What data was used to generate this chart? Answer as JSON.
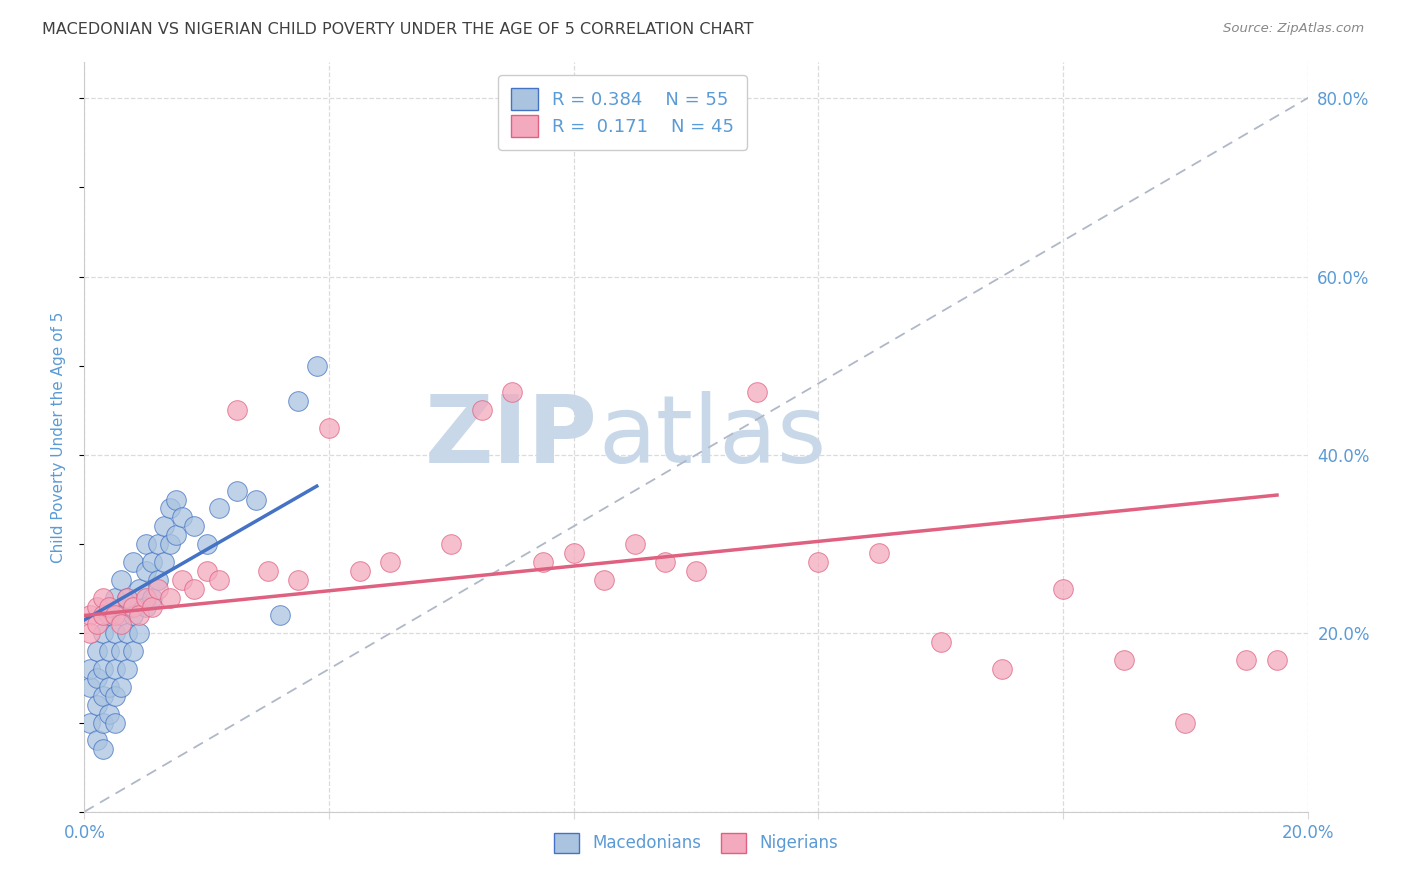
{
  "title": "MACEDONIAN VS NIGERIAN CHILD POVERTY UNDER THE AGE OF 5 CORRELATION CHART",
  "source": "Source: ZipAtlas.com",
  "ylabel": "Child Poverty Under the Age of 5",
  "xlim": [
    0.0,
    0.2
  ],
  "ylim": [
    0.0,
    0.84
  ],
  "macedonian_color": "#aac4e0",
  "nigerian_color": "#f4aabe",
  "macedonian_line_color": "#4472c4",
  "nigerian_line_color": "#e06080",
  "reference_line_color": "#b0b8c8",
  "watermark_color": "#dde5ef",
  "grid_color": "#d8d8d8",
  "title_color": "#404040",
  "axis_label_color": "#5b9bd5",
  "tick_color": "#5b9bd5",
  "macedonians_x": [
    0.001,
    0.001,
    0.001,
    0.002,
    0.002,
    0.002,
    0.002,
    0.003,
    0.003,
    0.003,
    0.003,
    0.003,
    0.004,
    0.004,
    0.004,
    0.004,
    0.005,
    0.005,
    0.005,
    0.005,
    0.005,
    0.006,
    0.006,
    0.006,
    0.006,
    0.007,
    0.007,
    0.007,
    0.008,
    0.008,
    0.008,
    0.009,
    0.009,
    0.01,
    0.01,
    0.01,
    0.011,
    0.011,
    0.012,
    0.012,
    0.013,
    0.013,
    0.014,
    0.014,
    0.015,
    0.015,
    0.016,
    0.018,
    0.02,
    0.022,
    0.025,
    0.028,
    0.032,
    0.035,
    0.038
  ],
  "macedonians_y": [
    0.14,
    0.16,
    0.1,
    0.18,
    0.15,
    0.12,
    0.08,
    0.16,
    0.13,
    0.1,
    0.07,
    0.2,
    0.18,
    0.14,
    0.11,
    0.22,
    0.2,
    0.16,
    0.13,
    0.24,
    0.1,
    0.22,
    0.18,
    0.14,
    0.26,
    0.24,
    0.2,
    0.16,
    0.22,
    0.18,
    0.28,
    0.25,
    0.2,
    0.27,
    0.23,
    0.3,
    0.28,
    0.24,
    0.3,
    0.26,
    0.32,
    0.28,
    0.34,
    0.3,
    0.35,
    0.31,
    0.33,
    0.32,
    0.3,
    0.34,
    0.36,
    0.35,
    0.22,
    0.46,
    0.5
  ],
  "nigerians_x": [
    0.001,
    0.001,
    0.002,
    0.002,
    0.003,
    0.003,
    0.004,
    0.005,
    0.006,
    0.007,
    0.008,
    0.009,
    0.01,
    0.011,
    0.012,
    0.014,
    0.016,
    0.018,
    0.02,
    0.022,
    0.025,
    0.03,
    0.035,
    0.04,
    0.045,
    0.05,
    0.06,
    0.065,
    0.07,
    0.075,
    0.08,
    0.085,
    0.09,
    0.095,
    0.1,
    0.11,
    0.12,
    0.13,
    0.14,
    0.15,
    0.16,
    0.17,
    0.18,
    0.19,
    0.195
  ],
  "nigerians_y": [
    0.22,
    0.2,
    0.23,
    0.21,
    0.24,
    0.22,
    0.23,
    0.22,
    0.21,
    0.24,
    0.23,
    0.22,
    0.24,
    0.23,
    0.25,
    0.24,
    0.26,
    0.25,
    0.27,
    0.26,
    0.45,
    0.27,
    0.26,
    0.43,
    0.27,
    0.28,
    0.3,
    0.45,
    0.47,
    0.28,
    0.29,
    0.26,
    0.3,
    0.28,
    0.27,
    0.47,
    0.28,
    0.29,
    0.19,
    0.16,
    0.25,
    0.17,
    0.1,
    0.17,
    0.17
  ],
  "mac_trendline_x": [
    0.0,
    0.038
  ],
  "mac_trendline_y": [
    0.215,
    0.365
  ],
  "nig_trendline_x": [
    0.0,
    0.195
  ],
  "nig_trendline_y": [
    0.22,
    0.355
  ]
}
